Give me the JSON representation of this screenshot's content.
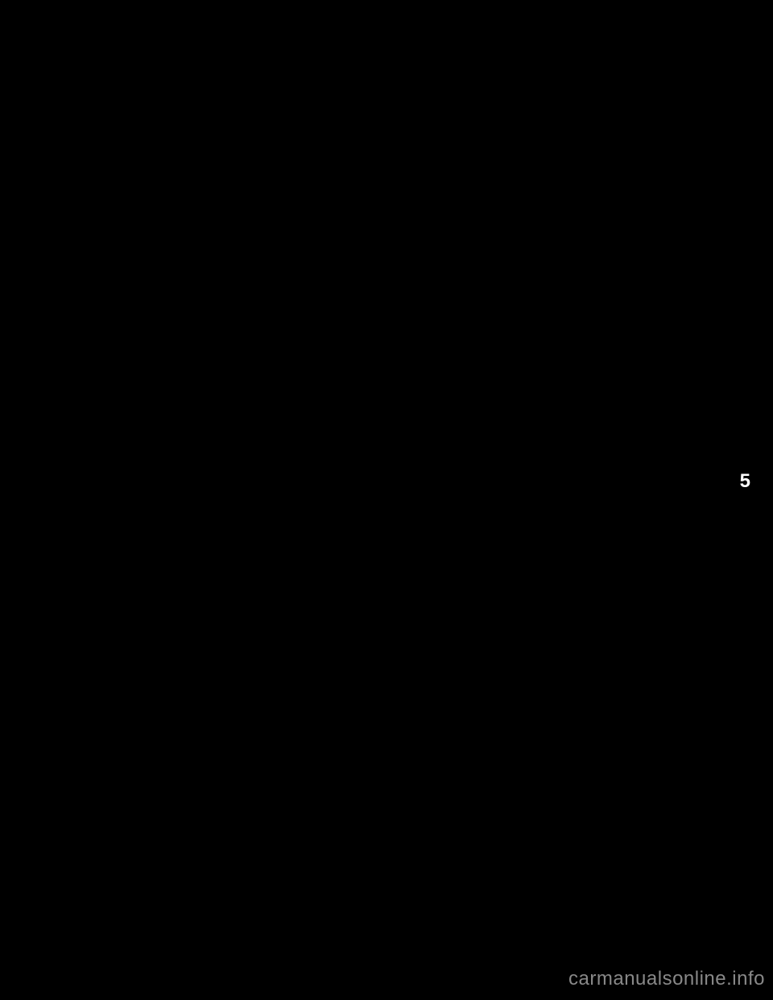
{
  "page": {
    "section_number": "5",
    "watermark": "carmanualsonline.info",
    "background_color": "#000000",
    "text_color": "#ffffff",
    "watermark_color": "#888888"
  }
}
